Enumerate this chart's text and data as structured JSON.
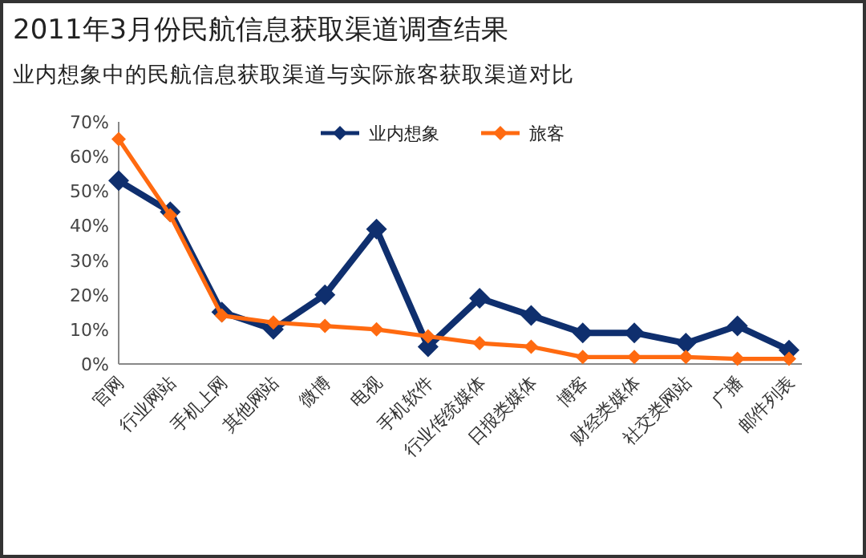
{
  "chart_data": {
    "type": "line",
    "title": "2011年3月份民航信息获取渠道调查结果",
    "subtitle": "业内想象中的民航信息获取渠道与实际旅客获取渠道对比",
    "categories": [
      "官网",
      "行业网站",
      "手机上网",
      "其他网站",
      "微博",
      "电视",
      "手机软件",
      "行业传统媒体",
      "日报类媒体",
      "博客",
      "财经类媒体",
      "社交类网站",
      "广播",
      "邮件列表"
    ],
    "series": [
      {
        "name": "业内想象",
        "color": "#0f2f6e",
        "values": [
          53,
          44,
          15,
          10,
          20,
          39,
          5,
          19,
          14,
          9,
          9,
          6,
          11,
          4
        ]
      },
      {
        "name": "旅客",
        "color": "#ff6a10",
        "values": [
          65,
          43,
          14,
          12,
          11,
          10,
          8,
          6,
          5,
          2,
          2,
          2,
          1.5,
          1.5
        ]
      }
    ],
    "ylim": [
      0,
      70
    ],
    "yticks": [
      {
        "value": 0,
        "label": "0%"
      },
      {
        "value": 10,
        "label": "10%"
      },
      {
        "value": 20,
        "label": "20%"
      },
      {
        "value": 30,
        "label": "30%"
      },
      {
        "value": 40,
        "label": "40%"
      },
      {
        "value": 50,
        "label": "50%"
      },
      {
        "value": 60,
        "label": "60%"
      },
      {
        "value": 70,
        "label": "70%"
      }
    ],
    "marker": "diamond",
    "legend": "top",
    "grid": false
  }
}
